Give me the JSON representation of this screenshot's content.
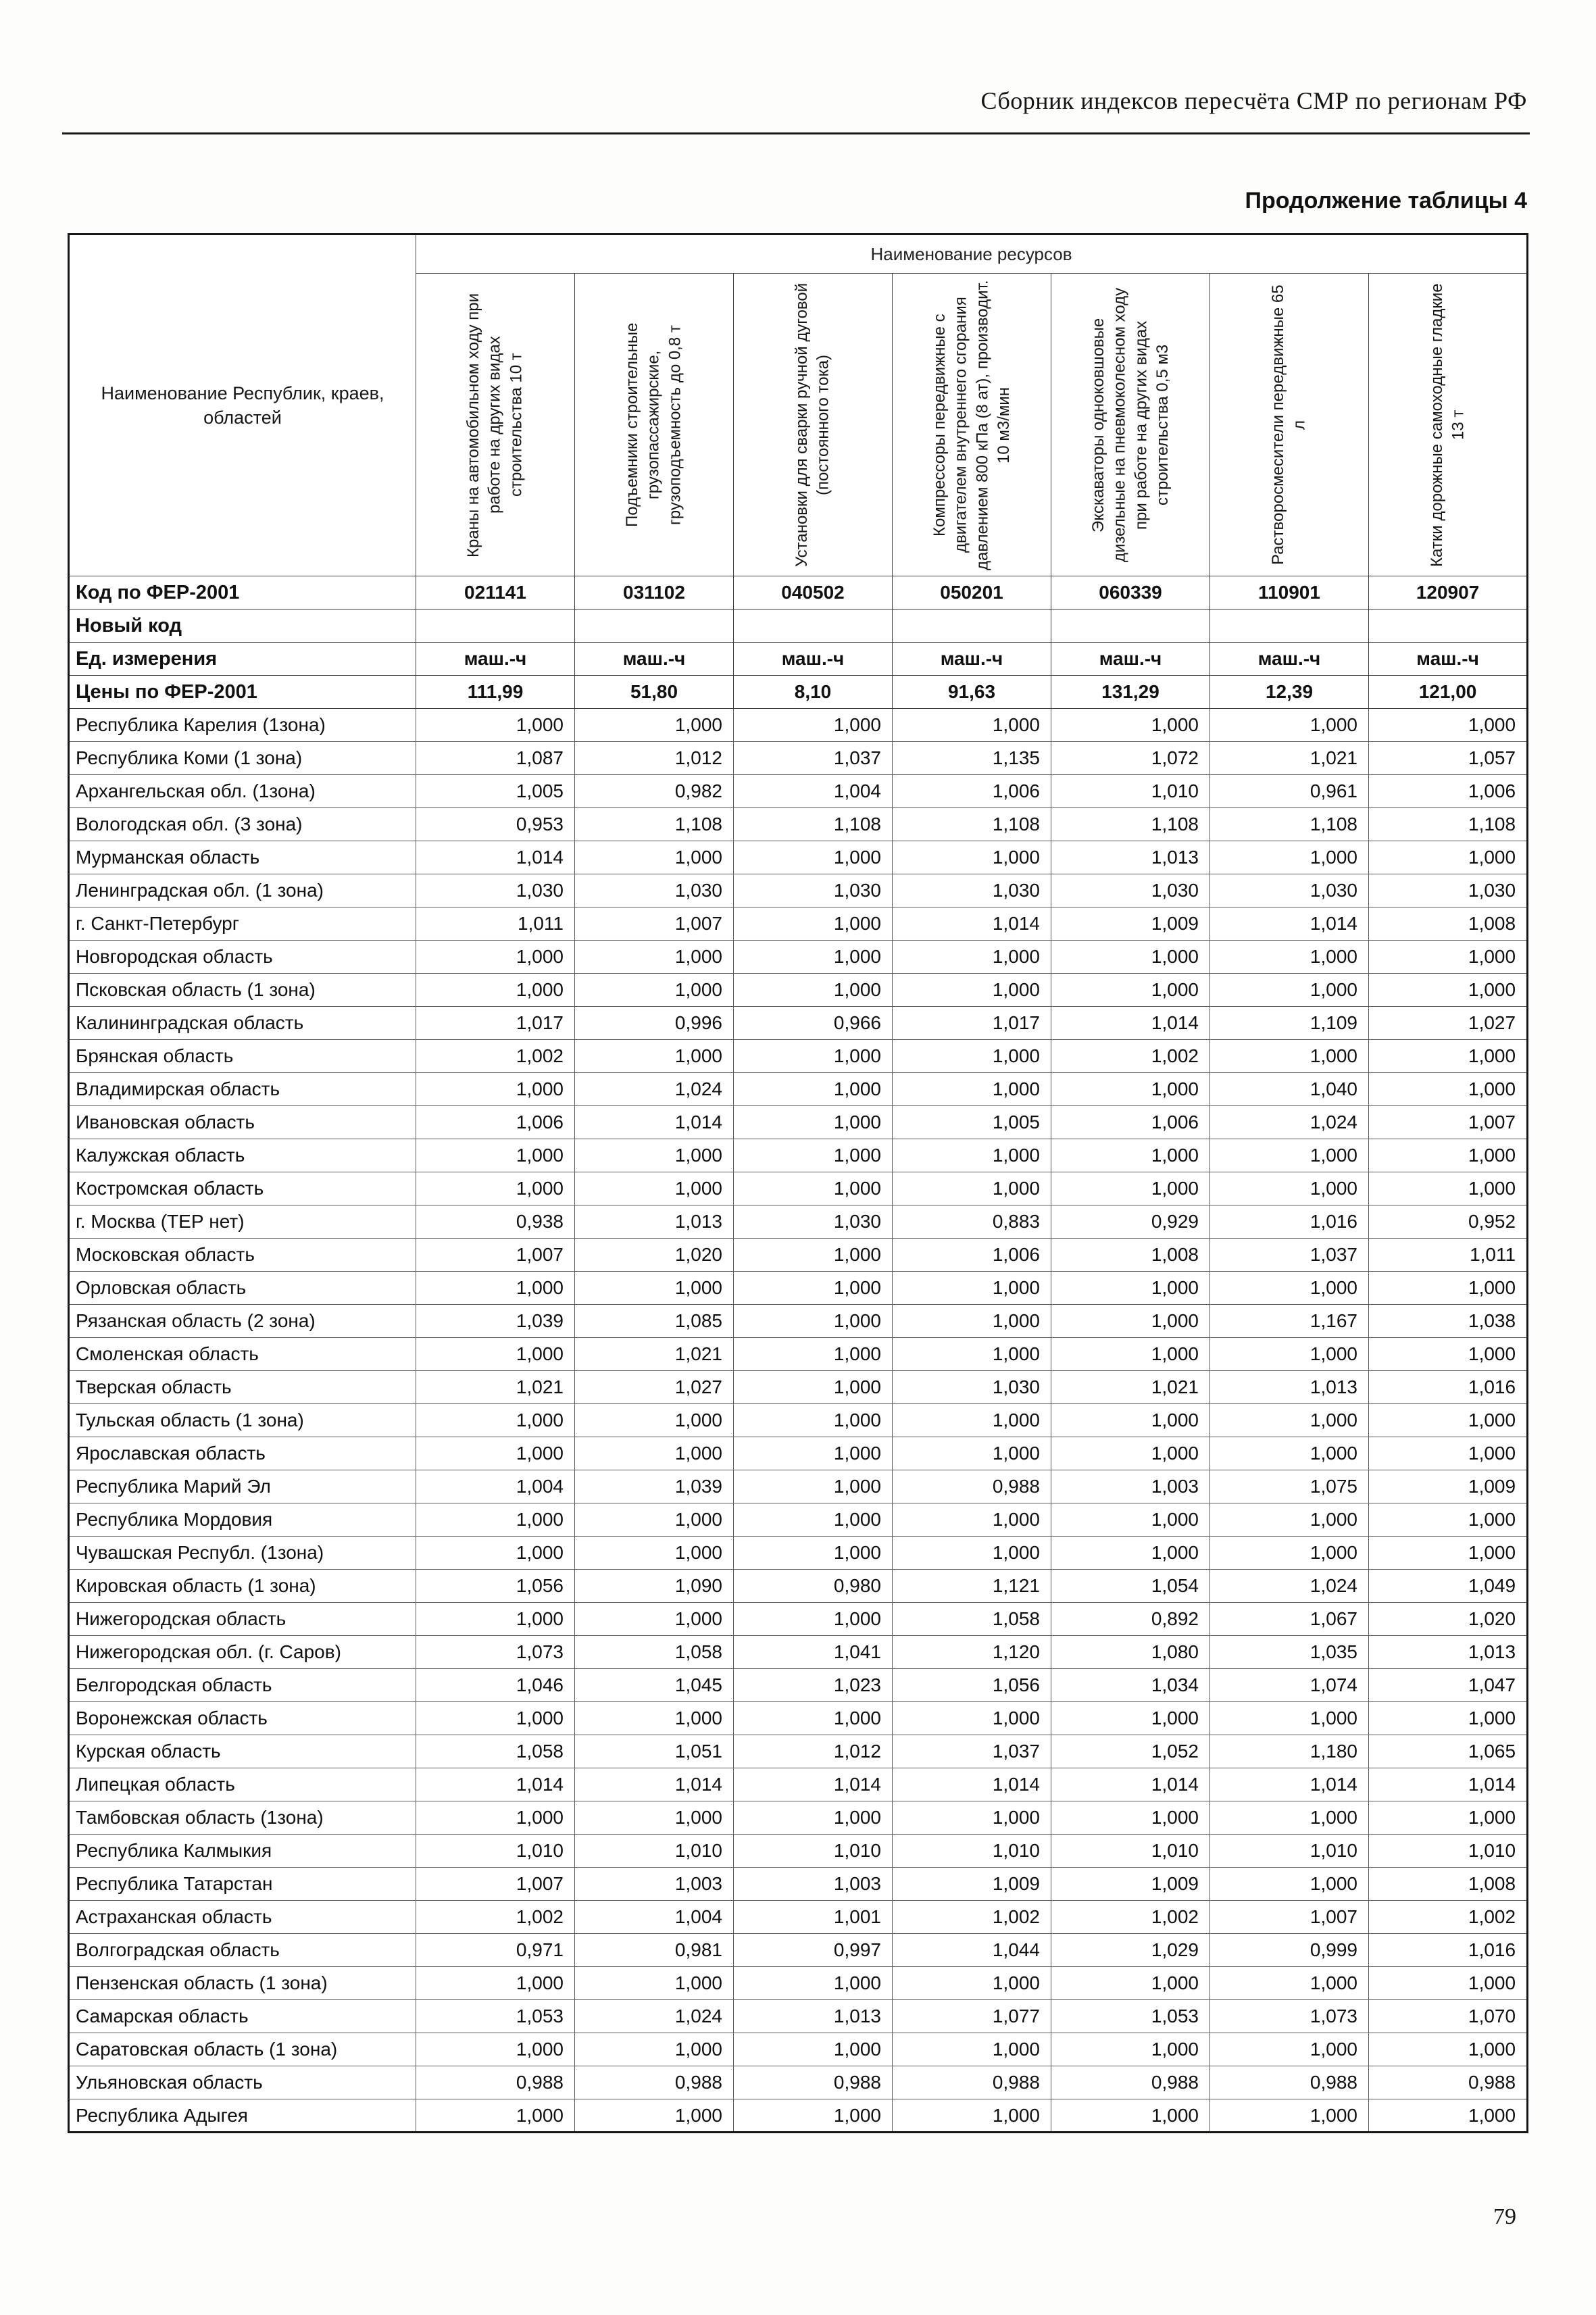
{
  "page": {
    "header_title": "Сборник индексов пересчёта СМР  по регионам РФ",
    "table_caption": "Продолжение таблицы 4",
    "page_number": "79"
  },
  "table": {
    "resources_group_header": "Наименование ресурсов",
    "region_column_header": "Наименование Республик, краев, областей",
    "resource_columns": [
      "Краны на автомобильном ходу при работе на других видах строительства 10 т",
      "Подъемники строительные грузопассажирские, грузоподъемность до 0,8 т",
      "Установки для сварки ручной дуговой (постоянного тока)",
      "Компрессоры передвижные с двигателем внутреннего сгорания давлением 800 кПа (8 ат), производит. 10 м3/мин",
      "Экскаваторы одноковшовые дизельные на пневмоколесном ходу при работе на других видах строительства 0,5 м3",
      "Растворосмесители передвижные 65 л",
      "Катки дорожные самоходные гладкие 13 т"
    ],
    "meta_rows": [
      {
        "label": "Код по ФЕР-2001",
        "values": [
          "021141",
          "031102",
          "040502",
          "050201",
          "060339",
          "110901",
          "120907"
        ]
      },
      {
        "label": "Новый код",
        "values": [
          "",
          "",
          "",
          "",
          "",
          "",
          ""
        ]
      },
      {
        "label": "Ед. измерения",
        "values": [
          "маш.-ч",
          "маш.-ч",
          "маш.-ч",
          "маш.-ч",
          "маш.-ч",
          "маш.-ч",
          "маш.-ч"
        ]
      },
      {
        "label": "Цены по ФЕР-2001",
        "values": [
          "111,99",
          "51,80",
          "8,10",
          "91,63",
          "131,29",
          "12,39",
          "121,00"
        ]
      }
    ],
    "data_rows": [
      {
        "region": "Республика Карелия (1зона)",
        "values": [
          "1,000",
          "1,000",
          "1,000",
          "1,000",
          "1,000",
          "1,000",
          "1,000"
        ]
      },
      {
        "region": "Республика Коми (1 зона)",
        "values": [
          "1,087",
          "1,012",
          "1,037",
          "1,135",
          "1,072",
          "1,021",
          "1,057"
        ]
      },
      {
        "region": "Архангельская обл. (1зона)",
        "values": [
          "1,005",
          "0,982",
          "1,004",
          "1,006",
          "1,010",
          "0,961",
          "1,006"
        ]
      },
      {
        "region": "Вологодская обл. (3 зона)",
        "values": [
          "0,953",
          "1,108",
          "1,108",
          "1,108",
          "1,108",
          "1,108",
          "1,108"
        ]
      },
      {
        "region": "Мурманская область",
        "values": [
          "1,014",
          "1,000",
          "1,000",
          "1,000",
          "1,013",
          "1,000",
          "1,000"
        ]
      },
      {
        "region": "Ленинградская обл. (1 зона)",
        "values": [
          "1,030",
          "1,030",
          "1,030",
          "1,030",
          "1,030",
          "1,030",
          "1,030"
        ]
      },
      {
        "region": "г. Санкт-Петербург",
        "values": [
          "1,011",
          "1,007",
          "1,000",
          "1,014",
          "1,009",
          "1,014",
          "1,008"
        ]
      },
      {
        "region": "Новгородская область",
        "values": [
          "1,000",
          "1,000",
          "1,000",
          "1,000",
          "1,000",
          "1,000",
          "1,000"
        ]
      },
      {
        "region": "Псковская область (1 зона)",
        "values": [
          "1,000",
          "1,000",
          "1,000",
          "1,000",
          "1,000",
          "1,000",
          "1,000"
        ]
      },
      {
        "region": "Калининградская область",
        "values": [
          "1,017",
          "0,996",
          "0,966",
          "1,017",
          "1,014",
          "1,109",
          "1,027"
        ]
      },
      {
        "region": "Брянская область",
        "values": [
          "1,002",
          "1,000",
          "1,000",
          "1,000",
          "1,002",
          "1,000",
          "1,000"
        ]
      },
      {
        "region": "Владимирская область",
        "values": [
          "1,000",
          "1,024",
          "1,000",
          "1,000",
          "1,000",
          "1,040",
          "1,000"
        ]
      },
      {
        "region": "Ивановская область",
        "values": [
          "1,006",
          "1,014",
          "1,000",
          "1,005",
          "1,006",
          "1,024",
          "1,007"
        ]
      },
      {
        "region": "Калужская область",
        "values": [
          "1,000",
          "1,000",
          "1,000",
          "1,000",
          "1,000",
          "1,000",
          "1,000"
        ]
      },
      {
        "region": "Костромская область",
        "values": [
          "1,000",
          "1,000",
          "1,000",
          "1,000",
          "1,000",
          "1,000",
          "1,000"
        ]
      },
      {
        "region": "г. Москва (ТЕР нет)",
        "values": [
          "0,938",
          "1,013",
          "1,030",
          "0,883",
          "0,929",
          "1,016",
          "0,952"
        ]
      },
      {
        "region": "Московская  область",
        "values": [
          "1,007",
          "1,020",
          "1,000",
          "1,006",
          "1,008",
          "1,037",
          "1,011"
        ]
      },
      {
        "region": "Орловская область",
        "values": [
          "1,000",
          "1,000",
          "1,000",
          "1,000",
          "1,000",
          "1,000",
          "1,000"
        ]
      },
      {
        "region": "Рязанская область (2 зона)",
        "values": [
          "1,039",
          "1,085",
          "1,000",
          "1,000",
          "1,000",
          "1,167",
          "1,038"
        ]
      },
      {
        "region": "Смоленская область",
        "values": [
          "1,000",
          "1,021",
          "1,000",
          "1,000",
          "1,000",
          "1,000",
          "1,000"
        ]
      },
      {
        "region": "Тверская область",
        "values": [
          "1,021",
          "1,027",
          "1,000",
          "1,030",
          "1,021",
          "1,013",
          "1,016"
        ]
      },
      {
        "region": "Тульская область (1 зона)",
        "values": [
          "1,000",
          "1,000",
          "1,000",
          "1,000",
          "1,000",
          "1,000",
          "1,000"
        ]
      },
      {
        "region": "Ярославская область",
        "values": [
          "1,000",
          "1,000",
          "1,000",
          "1,000",
          "1,000",
          "1,000",
          "1,000"
        ]
      },
      {
        "region": "Республика Марий Эл",
        "values": [
          "1,004",
          "1,039",
          "1,000",
          "0,988",
          "1,003",
          "1,075",
          "1,009"
        ]
      },
      {
        "region": "Республика Мордовия",
        "values": [
          "1,000",
          "1,000",
          "1,000",
          "1,000",
          "1,000",
          "1,000",
          "1,000"
        ]
      },
      {
        "region": "Чувашская Республ. (1зона)",
        "values": [
          "1,000",
          "1,000",
          "1,000",
          "1,000",
          "1,000",
          "1,000",
          "1,000"
        ]
      },
      {
        "region": "Кировская область (1 зона)",
        "values": [
          "1,056",
          "1,090",
          "0,980",
          "1,121",
          "1,054",
          "1,024",
          "1,049"
        ]
      },
      {
        "region": "Нижегородская область",
        "values": [
          "1,000",
          "1,000",
          "1,000",
          "1,058",
          "0,892",
          "1,067",
          "1,020"
        ]
      },
      {
        "region": "Нижегородская обл. (г. Саров)",
        "values": [
          "1,073",
          "1,058",
          "1,041",
          "1,120",
          "1,080",
          "1,035",
          "1,013"
        ]
      },
      {
        "region": "Белгородская область",
        "values": [
          "1,046",
          "1,045",
          "1,023",
          "1,056",
          "1,034",
          "1,074",
          "1,047"
        ]
      },
      {
        "region": "Воронежская область",
        "values": [
          "1,000",
          "1,000",
          "1,000",
          "1,000",
          "1,000",
          "1,000",
          "1,000"
        ]
      },
      {
        "region": "Курская область",
        "values": [
          "1,058",
          "1,051",
          "1,012",
          "1,037",
          "1,052",
          "1,180",
          "1,065"
        ]
      },
      {
        "region": "Липецкая область",
        "values": [
          "1,014",
          "1,014",
          "1,014",
          "1,014",
          "1,014",
          "1,014",
          "1,014"
        ]
      },
      {
        "region": "Тамбовская область (1зона)",
        "values": [
          "1,000",
          "1,000",
          "1,000",
          "1,000",
          "1,000",
          "1,000",
          "1,000"
        ]
      },
      {
        "region": "Республика Калмыкия",
        "values": [
          "1,010",
          "1,010",
          "1,010",
          "1,010",
          "1,010",
          "1,010",
          "1,010"
        ]
      },
      {
        "region": "Республика Татарстан",
        "values": [
          "1,007",
          "1,003",
          "1,003",
          "1,009",
          "1,009",
          "1,000",
          "1,008"
        ]
      },
      {
        "region": "Астраханская область",
        "values": [
          "1,002",
          "1,004",
          "1,001",
          "1,002",
          "1,002",
          "1,007",
          "1,002"
        ]
      },
      {
        "region": "Волгоградская область",
        "values": [
          "0,971",
          "0,981",
          "0,997",
          "1,044",
          "1,029",
          "0,999",
          "1,016"
        ]
      },
      {
        "region": "Пензенская область (1 зона)",
        "values": [
          "1,000",
          "1,000",
          "1,000",
          "1,000",
          "1,000",
          "1,000",
          "1,000"
        ]
      },
      {
        "region": "Самарская область",
        "values": [
          "1,053",
          "1,024",
          "1,013",
          "1,077",
          "1,053",
          "1,073",
          "1,070"
        ]
      },
      {
        "region": "Саратовская область (1 зона)",
        "values": [
          "1,000",
          "1,000",
          "1,000",
          "1,000",
          "1,000",
          "1,000",
          "1,000"
        ]
      },
      {
        "region": "Ульяновская область",
        "values": [
          "0,988",
          "0,988",
          "0,988",
          "0,988",
          "0,988",
          "0,988",
          "0,988"
        ]
      },
      {
        "region": "Республика Адыгея",
        "values": [
          "1,000",
          "1,000",
          "1,000",
          "1,000",
          "1,000",
          "1,000",
          "1,000"
        ]
      }
    ]
  }
}
